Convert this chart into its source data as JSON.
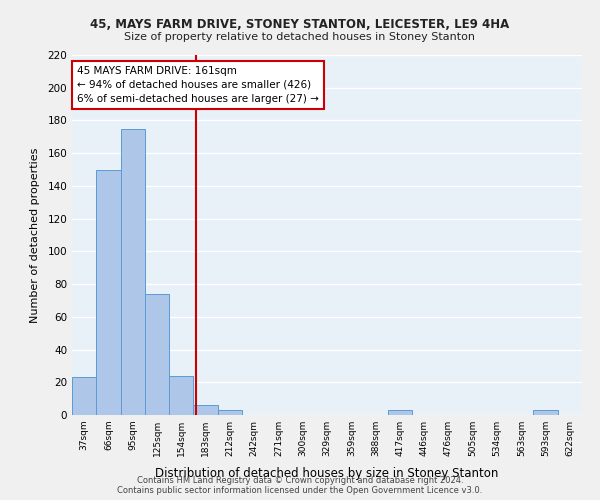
{
  "title1": "45, MAYS FARM DRIVE, STONEY STANTON, LEICESTER, LE9 4HA",
  "title2": "Size of property relative to detached houses in Stoney Stanton",
  "xlabel": "Distribution of detached houses by size in Stoney Stanton",
  "ylabel": "Number of detached properties",
  "footer1": "Contains HM Land Registry data © Crown copyright and database right 2024.",
  "footer2": "Contains public sector information licensed under the Open Government Licence v3.0.",
  "categories": [
    "37sqm",
    "66sqm",
    "95sqm",
    "125sqm",
    "154sqm",
    "183sqm",
    "212sqm",
    "242sqm",
    "271sqm",
    "300sqm",
    "329sqm",
    "359sqm",
    "388sqm",
    "417sqm",
    "446sqm",
    "476sqm",
    "505sqm",
    "534sqm",
    "563sqm",
    "593sqm",
    "622sqm"
  ],
  "values": [
    23,
    150,
    175,
    74,
    24,
    6,
    3,
    0,
    0,
    0,
    0,
    0,
    0,
    3,
    0,
    0,
    0,
    0,
    0,
    3,
    0
  ],
  "bar_color": "#aec6e8",
  "bar_edge_color": "#5b9bd5",
  "background_color": "#e8f0f8",
  "grid_color": "#ffffff",
  "fig_background": "#f0f0f0",
  "vline_x": 4.62,
  "vline_color": "#cc0000",
  "annotation_text": "45 MAYS FARM DRIVE: 161sqm\n← 94% of detached houses are smaller (426)\n6% of semi-detached houses are larger (27) →",
  "annotation_box_color": "#ffffff",
  "annotation_box_edge": "#cc0000",
  "ylim": [
    0,
    220
  ],
  "yticks": [
    0,
    20,
    40,
    60,
    80,
    100,
    120,
    140,
    160,
    180,
    200,
    220
  ]
}
